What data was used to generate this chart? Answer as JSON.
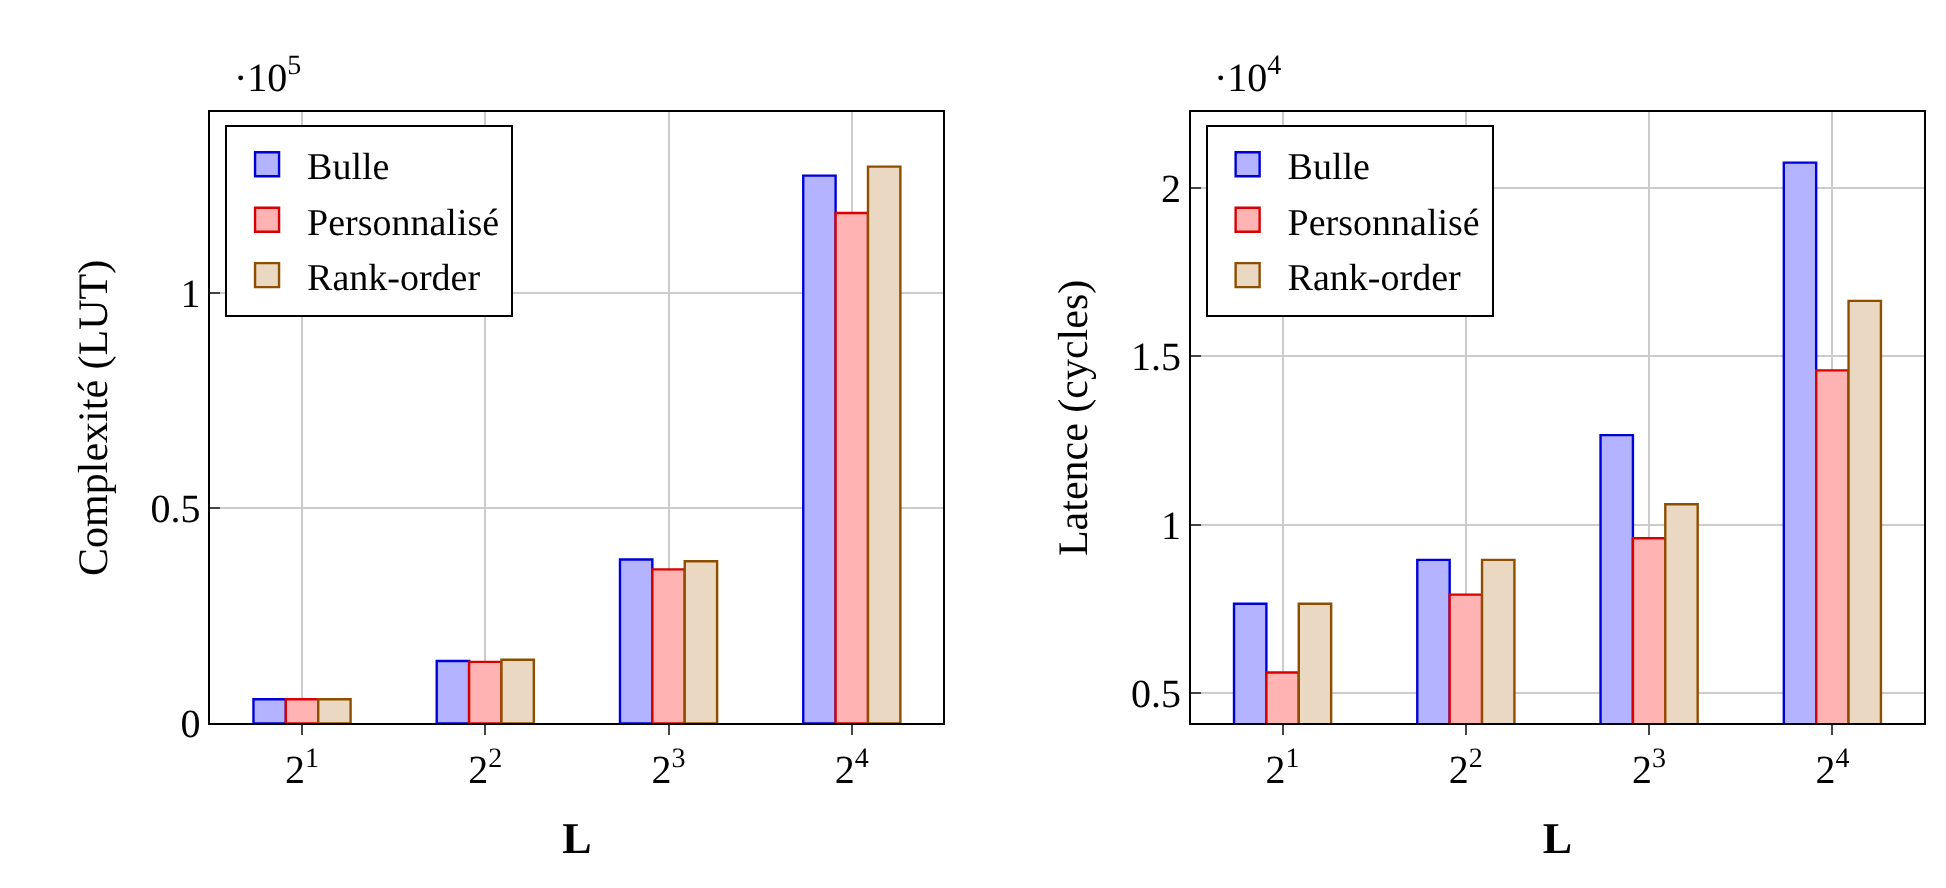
{
  "chart_data": [
    {
      "type": "bar",
      "xlabel": "L",
      "ylabel": "Complexité (LUT)",
      "categories": [
        "2$^{1}$",
        "2$^{2}$",
        "2$^{3}$",
        "2$^{4}$"
      ],
      "series": [
        {
          "name": "Bulle",
          "color": "#b3b3ff",
          "values": [
            0.056,
            0.145,
            0.381,
            1.273
          ]
        },
        {
          "name": "Personnalisé",
          "color": "#ffb3b3",
          "values": [
            0.056,
            0.143,
            0.358,
            1.186
          ]
        },
        {
          "name": "Rank-order",
          "color": "#ead8c2",
          "values": [
            0.056,
            0.148,
            0.377,
            1.294
          ]
        }
      ],
      "ylim": [
        0,
        1.42
      ],
      "yticks": [
        0,
        0.5,
        1
      ],
      "annotations": [
        "·10$^{5}$"
      ],
      "grid": true,
      "legend": "top left"
    },
    {
      "type": "bar",
      "xlabel": "L",
      "ylabel": "Latence (cycles)",
      "categories": [
        "2$^{1}$",
        "2$^{2}$",
        "2$^{3}$",
        "2$^{4}$"
      ],
      "series": [
        {
          "name": "Bulle",
          "color": "#b3b3ff",
          "values": [
            0.766,
            0.896,
            1.266,
            2.074
          ]
        },
        {
          "name": "Personnalisé",
          "color": "#ffb3b3",
          "values": [
            0.562,
            0.793,
            0.96,
            1.458
          ]
        },
        {
          "name": "Rank-order",
          "color": "#ead8c2",
          "values": [
            0.766,
            0.896,
            1.061,
            1.664
          ]
        }
      ],
      "ylim": [
        0.411,
        2.223
      ],
      "yticks": [
        0.5,
        1,
        1.5,
        2
      ],
      "annotations": [
        "·10$^{4}$"
      ],
      "grid": true,
      "legend": "top left"
    }
  ]
}
